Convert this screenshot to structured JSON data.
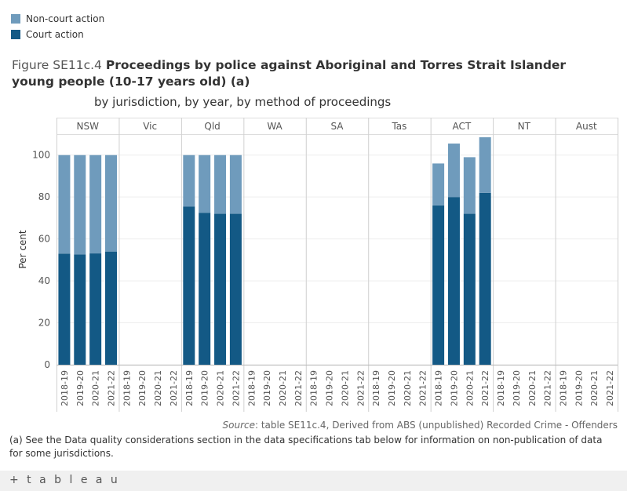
{
  "legend": {
    "items": [
      {
        "label": "Non-court action",
        "color": "#6f9bbc"
      },
      {
        "label": "Court action",
        "color": "#135985"
      }
    ]
  },
  "title": {
    "prefix": "Figure SE11c.4",
    "bold": "Proceedings by police against Aboriginal and Torres Strait Islander young people (10-17 years old) (a)",
    "subtitle": "by jurisdiction, by year, by method of proceedings"
  },
  "chart_data": {
    "type": "bar",
    "stacked": true,
    "title": "Proceedings by police against Aboriginal and Torres Strait Islander young people (10-17 years old) (a)",
    "ylabel": "Per cent",
    "xlabel": "",
    "ylim": [
      0,
      110
    ],
    "yticks": [
      0,
      20,
      40,
      60,
      80,
      100
    ],
    "grid": true,
    "legend_position": "top-left",
    "jurisdictions": [
      "NSW",
      "Vic",
      "Qld",
      "WA",
      "SA",
      "Tas",
      "ACT",
      "NT",
      "Aust"
    ],
    "years": [
      "2018-19",
      "2019-20",
      "2020-21",
      "2021-22"
    ],
    "series": [
      {
        "name": "Court action",
        "color": "#135985",
        "values": {
          "NSW": [
            53,
            52.6,
            53.1,
            54
          ],
          "Vic": [
            null,
            null,
            null,
            null
          ],
          "Qld": [
            75.5,
            72.5,
            72,
            72
          ],
          "WA": [
            null,
            null,
            null,
            null
          ],
          "SA": [
            null,
            null,
            null,
            null
          ],
          "Tas": [
            null,
            null,
            null,
            null
          ],
          "ACT": [
            76,
            80,
            72,
            82
          ],
          "NT": [
            null,
            null,
            null,
            null
          ],
          "Aust": [
            null,
            null,
            null,
            null
          ]
        }
      },
      {
        "name": "Non-court action",
        "color": "#6f9bbc",
        "values": {
          "NSW": [
            47,
            47.4,
            46.9,
            46
          ],
          "Vic": [
            null,
            null,
            null,
            null
          ],
          "Qld": [
            24.5,
            27.5,
            28,
            28
          ],
          "WA": [
            null,
            null,
            null,
            null
          ],
          "SA": [
            null,
            null,
            null,
            null
          ],
          "Tas": [
            null,
            null,
            null,
            null
          ],
          "ACT": [
            20,
            25.5,
            27,
            26.5
          ],
          "NT": [
            null,
            null,
            null,
            null
          ],
          "Aust": [
            null,
            null,
            null,
            null
          ]
        }
      }
    ]
  },
  "source": {
    "label": "Source",
    "text": ": table SE11c.4, Derived from ABS (unpublished) Recorded Crime - Offenders"
  },
  "footnote": "(a) See the Data quality considerations section in the data specifications tab below for information on non-publication of data for some jurisdictions.",
  "footer": {
    "logo": "+ t a b l e a u"
  }
}
